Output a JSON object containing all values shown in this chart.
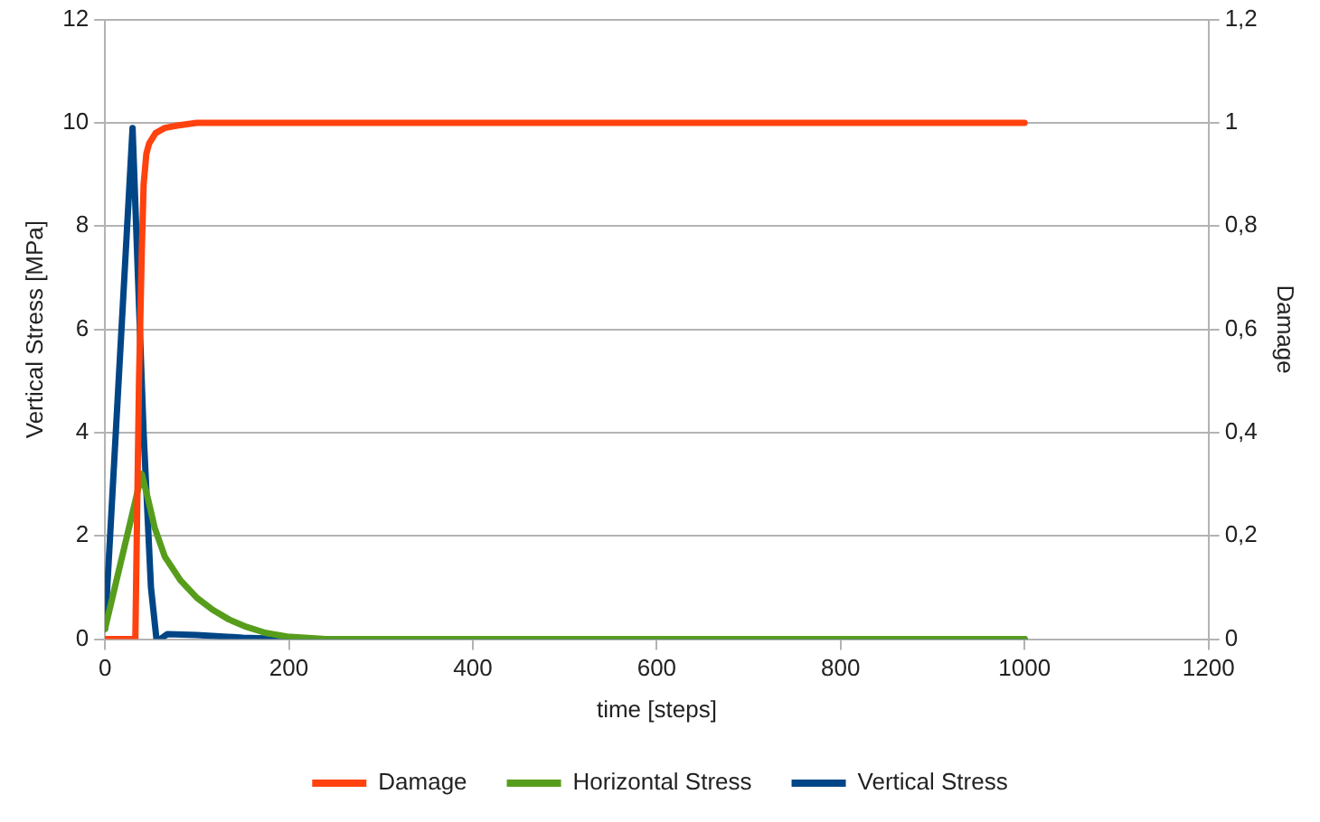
{
  "chart_data": {
    "type": "line",
    "xlabel": "time [steps]",
    "ylabel": "Vertical Stress [MPa]",
    "y2label": "Damage",
    "xlim": [
      0,
      1200
    ],
    "xticks": [
      0,
      200,
      400,
      600,
      800,
      1000,
      1200
    ],
    "ylim": [
      0,
      12
    ],
    "yticks": [
      0,
      2,
      4,
      6,
      8,
      10,
      12
    ],
    "y2lim": [
      0,
      1.2
    ],
    "y2ticks": [
      {
        "value": 0,
        "label": "0"
      },
      {
        "value": 0.2,
        "label": "0,2"
      },
      {
        "value": 0.4,
        "label": "0,4"
      },
      {
        "value": 0.6,
        "label": "0,6"
      },
      {
        "value": 0.8,
        "label": "0,8"
      },
      {
        "value": 1,
        "label": "1"
      },
      {
        "value": 1.2,
        "label": "1,2"
      }
    ],
    "grid": "y",
    "legend": "bottom",
    "marker": "none",
    "line_style": "solid",
    "series": [
      {
        "name": "Damage",
        "color": "#ff420e",
        "axis": "y2",
        "x": [
          0,
          33,
          35,
          37,
          40,
          42,
          45,
          48,
          55,
          65,
          80,
          100,
          140,
          1000
        ],
        "values": [
          0,
          0,
          0.25,
          0.5,
          0.75,
          0.88,
          0.94,
          0.96,
          0.98,
          0.99,
          0.995,
          1,
          1,
          1
        ]
      },
      {
        "name": "Horizontal Stress",
        "color": "#579d1c",
        "axis": "y",
        "x": [
          0,
          40,
          47,
          54,
          65,
          82,
          100,
          117,
          135,
          152,
          175,
          198,
          240,
          1000
        ],
        "values": [
          0.2,
          3.2,
          2.7,
          2.16,
          1.6,
          1.14,
          0.8,
          0.57,
          0.38,
          0.25,
          0.12,
          0.05,
          0,
          0
        ]
      },
      {
        "name": "Vertical Stress",
        "color": "#004586",
        "axis": "y",
        "x": [
          0,
          30,
          42,
          50,
          56,
          60,
          68,
          100,
          150,
          200,
          1000
        ],
        "values": [
          0.2,
          9.9,
          4,
          1,
          0,
          0,
          0.1,
          0.08,
          0.03,
          0,
          0
        ]
      }
    ]
  }
}
